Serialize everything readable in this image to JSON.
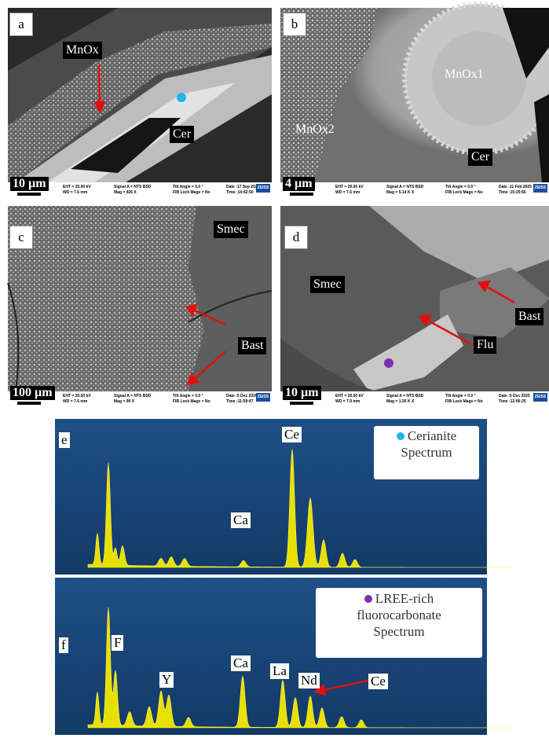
{
  "panels": [
    {
      "letter": "a",
      "scale": "10 µm",
      "labels": [
        "MnOx",
        "Cer"
      ],
      "logo": "ZEISS",
      "info": [
        "EHT = 20.00 kV",
        "WD = 7.6 mm",
        "Signal A = NTS BSD",
        "Mag = 926 X",
        "Tilt Angle = 0.0 °",
        "FIB Lock Mags = No",
        "Date :17 Sep 2025",
        "Time :14:42:50"
      ]
    },
    {
      "letter": "b",
      "scale": "4 µm",
      "labels": [
        "MnOx1",
        "MnOx2",
        "Cer"
      ],
      "logo": "ZEISS",
      "info": [
        "EHT = 20.00 kV",
        "WD = 7.5 mm",
        "Signal A = NTS BSD",
        "Mag = 5.14 K X",
        "Tilt Angle = 0.0 °",
        "FIB Lock Mags = No",
        "Date :11 Feb 2025",
        "Time :15:25:56"
      ]
    },
    {
      "letter": "c",
      "scale": "100 µm",
      "labels": [
        "Smec",
        "Bast"
      ],
      "logo": "ZEISS",
      "info": [
        "EHT = 20.00 kV",
        "WD = 7.6 mm",
        "Signal A = NTS BSD",
        "Mag = 99 X",
        "Tilt Angle = 0.0 °",
        "FIB Lock Mags = No",
        "Date :5 Dec 2025",
        "Time :11:59:47"
      ]
    },
    {
      "letter": "d",
      "scale": "10 µm",
      "labels": [
        "Smec",
        "Bast",
        "Flu"
      ],
      "logo": "ZEISS",
      "info": [
        "EHT = 20.00 kV",
        "WD = 7.9 mm",
        "Signal A = NTS BSD",
        "Mag = 1.26 K X",
        "Tilt Angle = 0.0 °",
        "FIB Lock Mags = No",
        "Date :5 Dec 2025",
        "Time :12:06:25"
      ]
    }
  ],
  "spectra": [
    {
      "letter": "e",
      "legend": [
        "Cerianite",
        "Spectrum"
      ],
      "peaks": [
        "Ce",
        "Ca"
      ]
    },
    {
      "letter": "f",
      "legend": [
        "LREE-rich",
        "fluorocarbonate",
        "Spectrum"
      ],
      "peaks": [
        "F",
        "Y",
        "Ca",
        "La",
        "Nd",
        "Ce"
      ]
    }
  ]
}
